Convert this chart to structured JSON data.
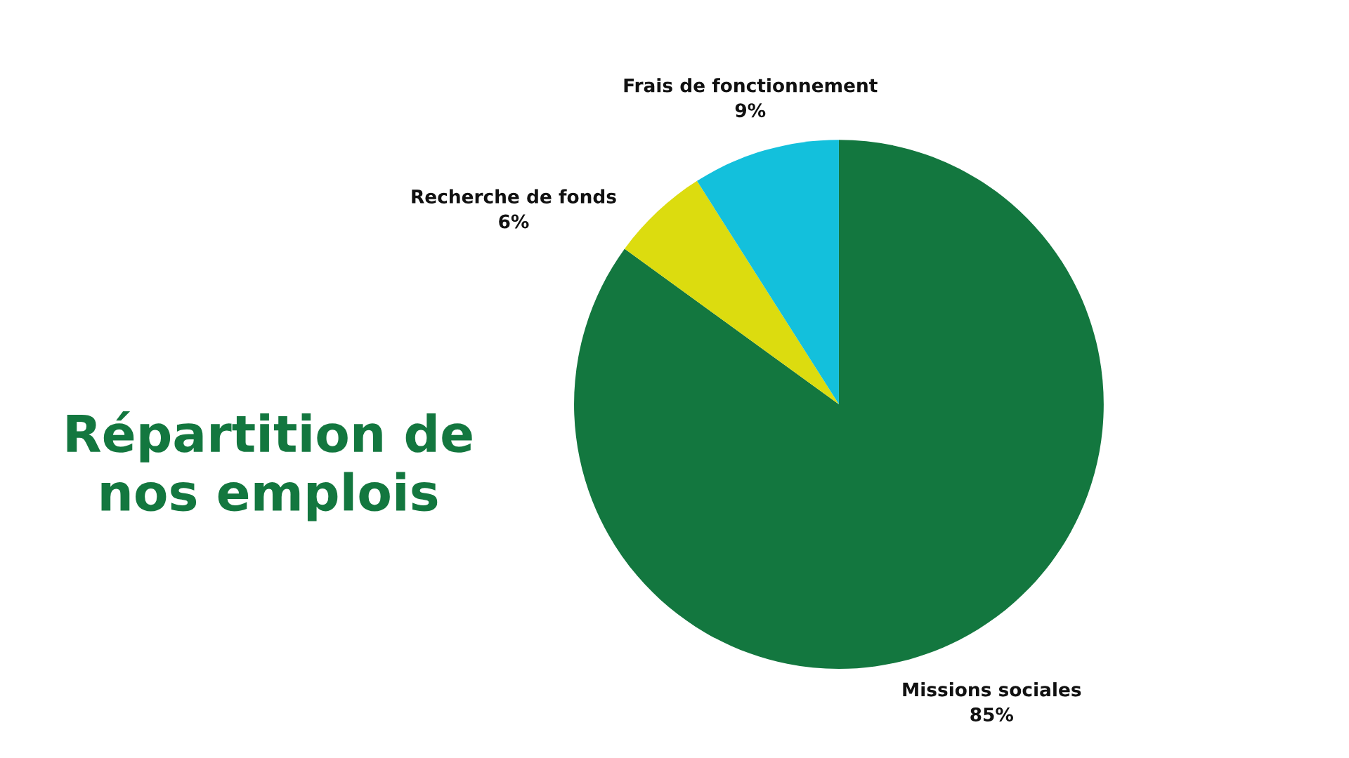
{
  "chart_data": {
    "type": "pie",
    "title": "Répartition de\nnos emplois",
    "categories": [
      "Missions sociales",
      "Recherche de fonds",
      "Frais de fonctionnement"
    ],
    "values": [
      85,
      6,
      9
    ],
    "value_labels": [
      "85%",
      "6%",
      "9%"
    ],
    "colors": [
      "#13773f",
      "#dcdc0f",
      "#13c0dc"
    ]
  }
}
